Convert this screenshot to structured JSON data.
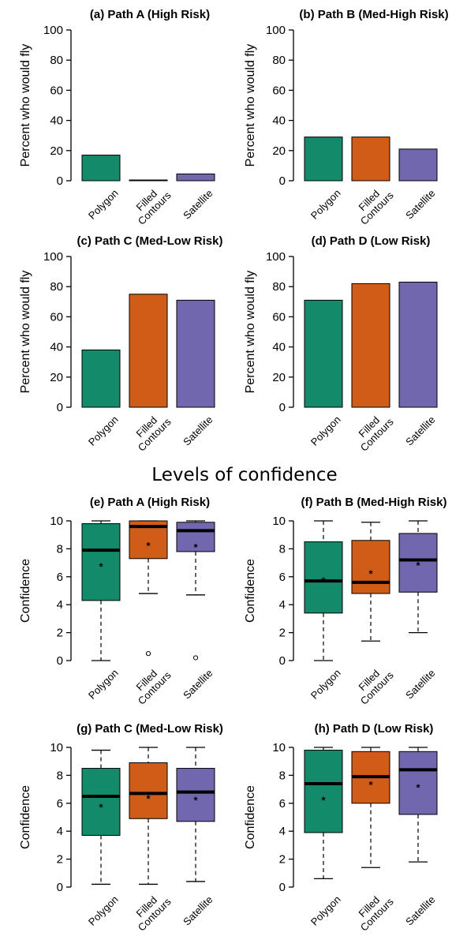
{
  "colors": {
    "polygon": "#138A6A",
    "filled": "#D05C17",
    "satellite": "#7167AE"
  },
  "section_title": "Levels of confidence",
  "chart_data": [
    {
      "type": "bar",
      "title": "(a) Path A (High Risk)",
      "ylabel": "Percent who would fly",
      "ylim": [
        0,
        100
      ],
      "yticks": [
        "0",
        "20",
        "40",
        "60",
        "80",
        "100"
      ],
      "categories": [
        "Polygon",
        "Filled Contours",
        "Satellite"
      ],
      "values": [
        17,
        0.5,
        4.5
      ]
    },
    {
      "type": "bar",
      "title": "(b) Path B (Med-High Risk)",
      "ylabel": "Percent who would fly",
      "ylim": [
        0,
        100
      ],
      "yticks": [
        "0",
        "20",
        "40",
        "60",
        "80",
        "100"
      ],
      "categories": [
        "Polygon",
        "Filled Contours",
        "Satellite"
      ],
      "values": [
        29,
        29,
        21
      ]
    },
    {
      "type": "bar",
      "title": "(c) Path C (Med-Low Risk)",
      "ylabel": "Percent who would fly",
      "ylim": [
        0,
        100
      ],
      "yticks": [
        "0",
        "20",
        "40",
        "60",
        "80",
        "100"
      ],
      "categories": [
        "Polygon",
        "Filled Contours",
        "Satellite"
      ],
      "values": [
        38,
        75,
        71
      ]
    },
    {
      "type": "bar",
      "title": "(d) Path D (Low Risk)",
      "ylabel": "Percent who would fly",
      "ylim": [
        0,
        100
      ],
      "yticks": [
        "0",
        "20",
        "40",
        "60",
        "80",
        "100"
      ],
      "categories": [
        "Polygon",
        "Filled Contours",
        "Satellite"
      ],
      "values": [
        71,
        82,
        83
      ]
    },
    {
      "type": "box",
      "title": "(e) Path A (High Risk)",
      "ylabel": "Confidence",
      "ylim": [
        0,
        10
      ],
      "yticks": [
        "0",
        "2",
        "4",
        "6",
        "8",
        "10"
      ],
      "categories": [
        "Polygon",
        "Filled Contours",
        "Satellite"
      ],
      "boxes": [
        {
          "whislo": 0,
          "q1": 4.3,
          "med": 7.9,
          "q3": 9.8,
          "whishi": 10,
          "mean": 6.8,
          "outliers": []
        },
        {
          "whislo": 4.8,
          "q1": 7.3,
          "med": 9.6,
          "q3": 10,
          "whishi": 10,
          "mean": 8.3,
          "outliers": [
            0.5
          ]
        },
        {
          "whislo": 4.7,
          "q1": 7.8,
          "med": 9.3,
          "q3": 9.9,
          "whishi": 10,
          "mean": 8.2,
          "outliers": [
            0.2
          ]
        }
      ]
    },
    {
      "type": "box",
      "title": "(f) Path B (Med-High Risk)",
      "ylabel": "Confidence",
      "ylim": [
        0,
        10
      ],
      "yticks": [
        "0",
        "2",
        "4",
        "6",
        "8",
        "10"
      ],
      "categories": [
        "Polygon",
        "Filled Contours",
        "Satellite"
      ],
      "boxes": [
        {
          "whislo": 0,
          "q1": 3.4,
          "med": 5.7,
          "q3": 8.5,
          "whishi": 10,
          "mean": 5.8,
          "outliers": []
        },
        {
          "whislo": 1.4,
          "q1": 4.8,
          "med": 5.6,
          "q3": 8.6,
          "whishi": 9.9,
          "mean": 6.3,
          "outliers": []
        },
        {
          "whislo": 2,
          "q1": 4.9,
          "med": 7.2,
          "q3": 9.1,
          "whishi": 10,
          "mean": 6.9,
          "outliers": []
        }
      ]
    },
    {
      "type": "box",
      "title": "(g) Path C (Med-Low Risk)",
      "ylabel": "Confidence",
      "ylim": [
        0,
        10
      ],
      "yticks": [
        "0",
        "2",
        "4",
        "6",
        "8",
        "10"
      ],
      "categories": [
        "Polygon",
        "Filled Contours",
        "Satellite"
      ],
      "boxes": [
        {
          "whislo": 0.2,
          "q1": 3.7,
          "med": 6.5,
          "q3": 8.5,
          "whishi": 9.8,
          "mean": 5.8,
          "outliers": []
        },
        {
          "whislo": 0.2,
          "q1": 4.9,
          "med": 6.7,
          "q3": 8.9,
          "whishi": 10,
          "mean": 6.4,
          "outliers": []
        },
        {
          "whislo": 0.4,
          "q1": 4.7,
          "med": 6.8,
          "q3": 8.5,
          "whishi": 10,
          "mean": 6.3,
          "outliers": []
        }
      ]
    },
    {
      "type": "box",
      "title": "(h) Path D (Low Risk)",
      "ylabel": "Confidence",
      "ylim": [
        0,
        10
      ],
      "yticks": [
        "0",
        "2",
        "4",
        "6",
        "8",
        "10"
      ],
      "categories": [
        "Polygon",
        "Filled Contours",
        "Satellite"
      ],
      "boxes": [
        {
          "whislo": 0.6,
          "q1": 3.9,
          "med": 7.4,
          "q3": 9.8,
          "whishi": 10,
          "mean": 6.3,
          "outliers": []
        },
        {
          "whislo": 1.4,
          "q1": 6.0,
          "med": 7.9,
          "q3": 9.7,
          "whishi": 10,
          "mean": 7.4,
          "outliers": []
        },
        {
          "whislo": 1.8,
          "q1": 5.2,
          "med": 8.4,
          "q3": 9.7,
          "whishi": 10,
          "mean": 7.2,
          "outliers": []
        }
      ]
    }
  ]
}
